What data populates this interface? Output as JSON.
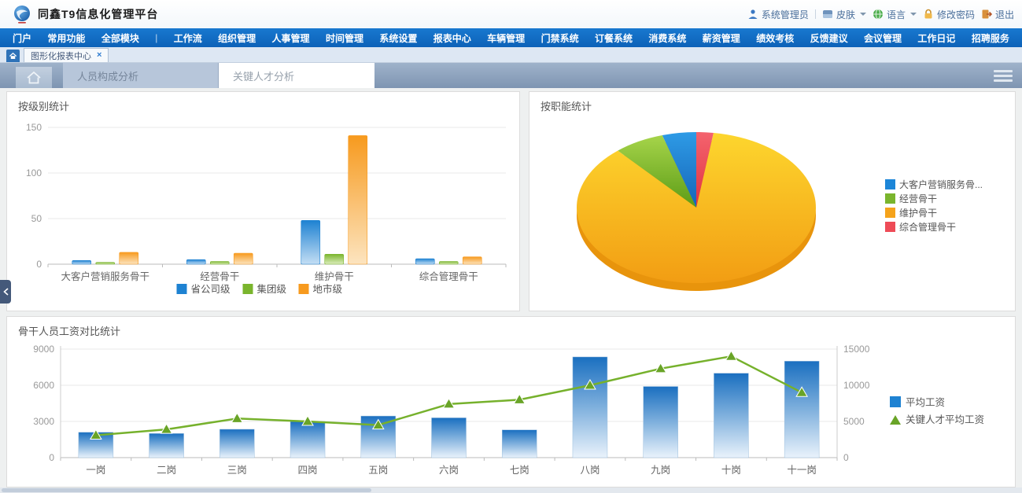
{
  "app": {
    "title": "同鑫T9信息化管理平台"
  },
  "user_bar": {
    "username": "系统管理员",
    "skin_label": "皮肤",
    "language_label": "语言",
    "change_password_label": "修改密码",
    "logout_label": "退出"
  },
  "nav": {
    "items": [
      "门户",
      "常用功能",
      "全部模块",
      "工作流",
      "组织管理",
      "人事管理",
      "时间管理",
      "系统设置",
      "报表中心",
      "车辆管理",
      "门禁系统",
      "订餐系统",
      "消费系统",
      "薪资管理",
      "绩效考核",
      "反馈建议",
      "会议管理",
      "工作日记",
      "招聘服务"
    ],
    "divider_after_index": 2
  },
  "outer_tabs": {
    "tabs": [
      {
        "label": "图形化报表中心",
        "active": true,
        "closable": true
      }
    ]
  },
  "inner_tabs": {
    "tabs": [
      {
        "label": "人员构成分析",
        "active": false
      },
      {
        "label": "关键人才分析",
        "active": true
      }
    ]
  },
  "panels": {
    "level_stats": {
      "title": "按级别统计"
    },
    "function_stats": {
      "title": "按职能统计"
    },
    "salary_compare": {
      "title": "骨干人员工资对比统计"
    }
  },
  "colors": {
    "nav_blue": "#0f6cc3",
    "bar_blue": "#1e82d2",
    "bar_green": "#7ab52d",
    "bar_orange": "#f79a1e",
    "pie_red": "#ee4b57",
    "line_green": "#76b12c",
    "axis_text": "#999999"
  },
  "chart_data": [
    {
      "type": "bar",
      "title": "按级别统计",
      "categories": [
        "大客户营销服务骨干",
        "经营骨干",
        "维护骨干",
        "综合管理骨干"
      ],
      "series": [
        {
          "name": "省公司级",
          "color": "#1e82d2",
          "color_light": "#c4def4",
          "values": [
            4,
            5,
            48,
            6
          ]
        },
        {
          "name": "集团级",
          "color": "#7ab52d",
          "color_light": "#dcedbd",
          "values": [
            2,
            3,
            11,
            3
          ]
        },
        {
          "name": "地市级",
          "color": "#f79a1e",
          "color_light": "#fce4bf",
          "values": [
            13,
            12,
            141,
            8
          ]
        }
      ],
      "ylim": [
        0,
        150
      ],
      "yticks": [
        0,
        50,
        100,
        150
      ],
      "legend_position": "bottom",
      "grid": true
    },
    {
      "type": "pie",
      "title": "按职能统计",
      "slices": [
        {
          "label": "大客户营销服务骨...",
          "value": 4.6,
          "color": "#1d86d8",
          "grad": [
            "#2e9be6",
            "#1565b8"
          ]
        },
        {
          "label": "经营骨干",
          "value": 6.8,
          "color": "#7ab52d",
          "grad": [
            "#a6d44a",
            "#5c9c16"
          ]
        },
        {
          "label": "维护骨干",
          "value": 86.3,
          "color": "#f5a31b",
          "grad": [
            "#fdd62e",
            "#f29d13"
          ]
        },
        {
          "label": "综合管理骨干",
          "value": 2.3,
          "color": "#ee4b57",
          "grad": [
            "#f4636e",
            "#e03340"
          ]
        }
      ],
      "unit": "percent",
      "style": "3d-ellipse",
      "legend_position": "right"
    },
    {
      "type": "bar+line",
      "title": "骨干人员工资对比统计",
      "categories": [
        "一岗",
        "二岗",
        "三岗",
        "四岗",
        "五岗",
        "六岗",
        "七岗",
        "八岗",
        "九岗",
        "十岗",
        "十一岗"
      ],
      "bar_series": {
        "name": "平均工资",
        "axis": "left",
        "color": "#1a6fc0",
        "color_mid": "#7fb0dd",
        "color_light": "#e9f2fb",
        "values": [
          2100,
          2000,
          2350,
          3000,
          3450,
          3300,
          2300,
          8350,
          5900,
          7000,
          8000
        ]
      },
      "line_series": {
        "name": "关键人才平均工资",
        "axis": "right",
        "color": "#76b12c",
        "marker": "triangle",
        "marker_color": "#69a427",
        "values": [
          3100,
          3900,
          5400,
          5000,
          4500,
          7400,
          8000,
          10000,
          12300,
          14000,
          9000
        ]
      },
      "y_left": {
        "lim": [
          0,
          9000
        ],
        "ticks": [
          0,
          3000,
          6000,
          9000
        ]
      },
      "y_right": {
        "lim": [
          0,
          15000
        ],
        "ticks": [
          0,
          5000,
          10000,
          15000
        ]
      },
      "legend_position": "right",
      "grid": true
    }
  ]
}
